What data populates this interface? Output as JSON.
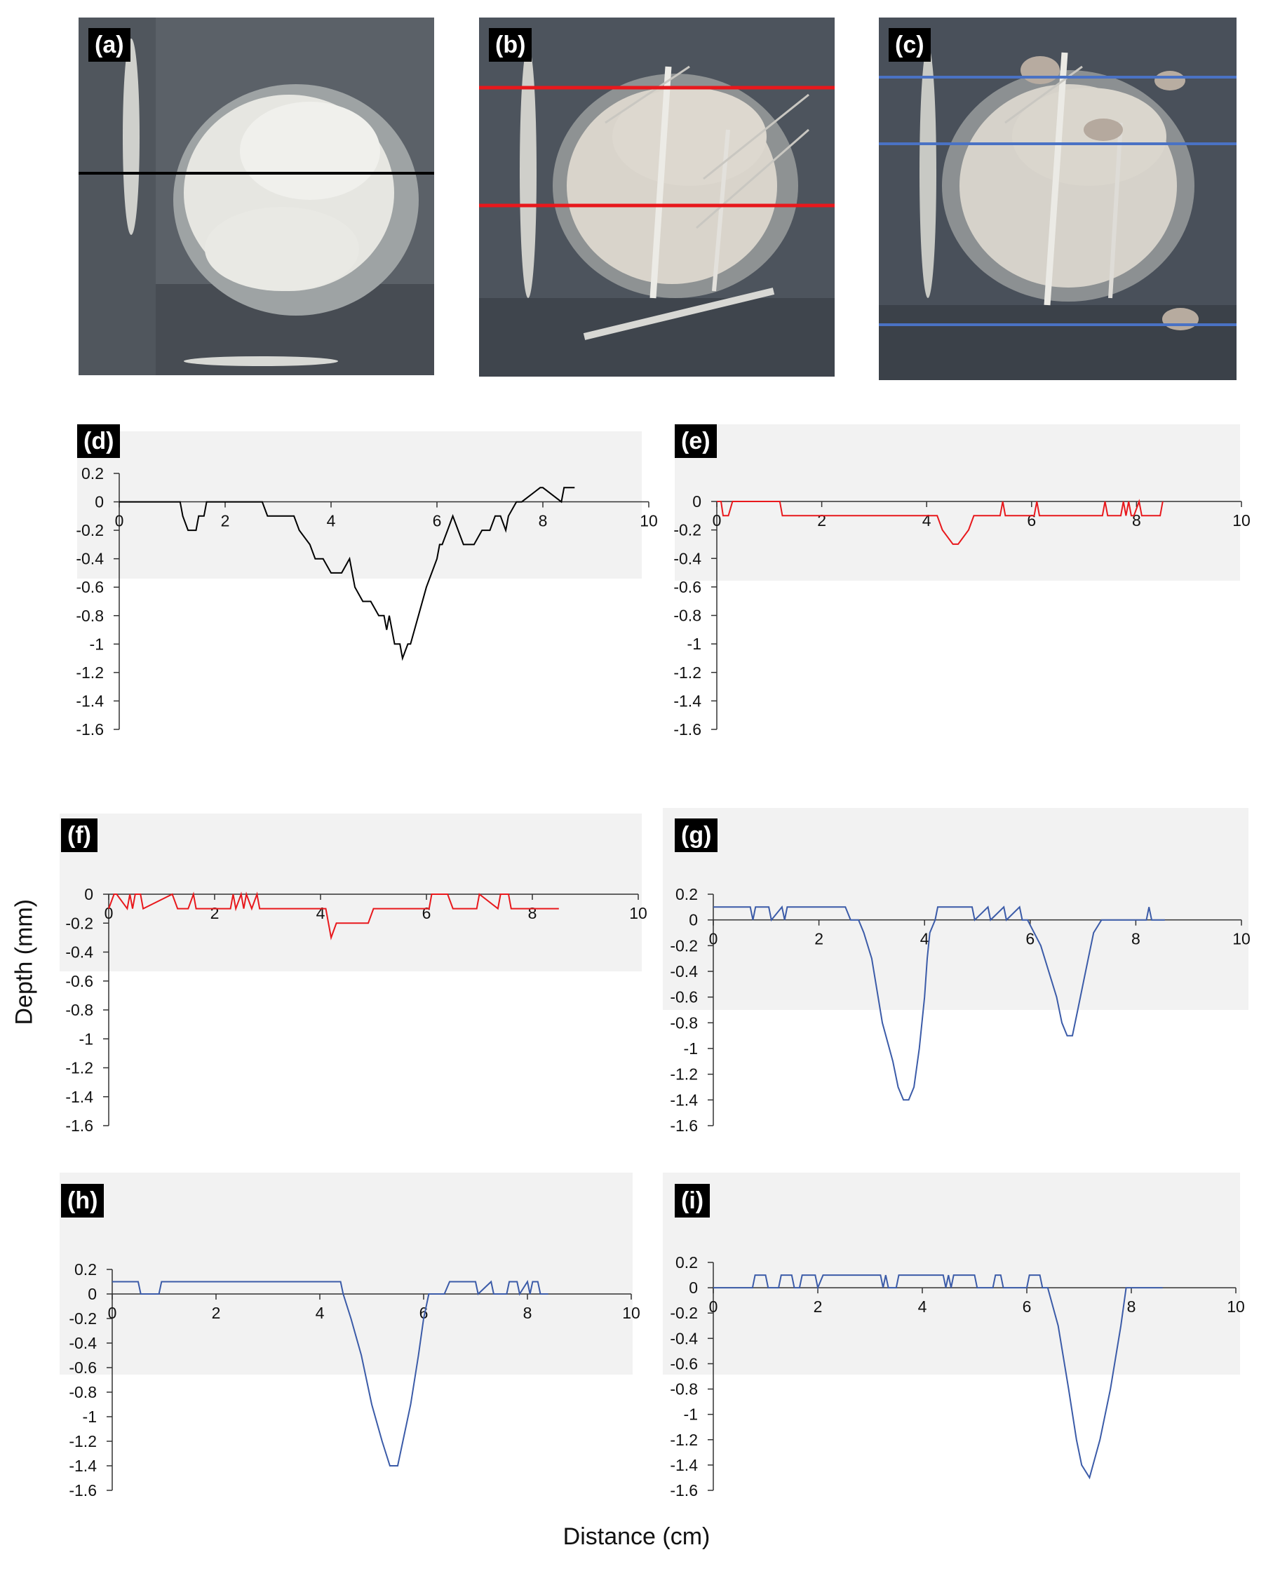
{
  "axis_titles": {
    "y": "Depth (mm)",
    "x": "Distance (cm)"
  },
  "photos": [
    {
      "label": "(a)",
      "line_color": "#000000"
    },
    {
      "label": "(b)",
      "line_color": "#e8181c"
    },
    {
      "label": "(c)",
      "line_color": "#4a72c4"
    }
  ],
  "colors": {
    "black": "#000000",
    "red": "#e8181c",
    "blue": "#3b5ba8",
    "shade": "#f2f2f2"
  },
  "chart_data": [
    {
      "type": "line",
      "label": "(d)",
      "color": "#000000",
      "xlim": [
        0,
        10
      ],
      "ylim": [
        -1.6,
        0.2
      ],
      "xticks": [
        0,
        2,
        4,
        6,
        8,
        10
      ],
      "yticks": [
        0.2,
        0,
        -0.2,
        -0.4,
        -0.6,
        -0.8,
        -1,
        -1.2,
        -1.4,
        -1.6
      ],
      "x": [
        0,
        1.15,
        1.2,
        1.3,
        1.45,
        1.5,
        1.6,
        1.65,
        2.7,
        2.8,
        3.3,
        3.4,
        3.6,
        3.7,
        3.85,
        4.0,
        4.2,
        4.35,
        4.4,
        4.45,
        4.6,
        4.75,
        4.9,
        5.0,
        5.05,
        5.1,
        5.2,
        5.3,
        5.35,
        5.45,
        5.5,
        5.65,
        5.8,
        5.9,
        6.0,
        6.05,
        6.1,
        6.2,
        6.3,
        6.4,
        6.5,
        6.6,
        6.7,
        6.85,
        7.0,
        7.1,
        7.2,
        7.3,
        7.35,
        7.5,
        7.55,
        7.6,
        7.95,
        8.0,
        8.35,
        8.4,
        8.6
      ],
      "y": [
        0,
        0,
        -0.1,
        -0.2,
        -0.2,
        -0.1,
        -0.1,
        0,
        0,
        -0.1,
        -0.1,
        -0.2,
        -0.3,
        -0.4,
        -0.4,
        -0.5,
        -0.5,
        -0.4,
        -0.5,
        -0.6,
        -0.7,
        -0.7,
        -0.8,
        -0.8,
        -0.9,
        -0.8,
        -1.0,
        -1.0,
        -1.1,
        -1.0,
        -1.0,
        -0.8,
        -0.6,
        -0.5,
        -0.4,
        -0.3,
        -0.3,
        -0.2,
        -0.1,
        -0.2,
        -0.3,
        -0.3,
        -0.3,
        -0.2,
        -0.2,
        -0.1,
        -0.1,
        -0.2,
        -0.1,
        0,
        0,
        0,
        0.1,
        0.1,
        0,
        0.1,
        0.1
      ],
      "shade_band": [
        -0.5,
        0.25
      ]
    },
    {
      "type": "line",
      "label": "(e)",
      "color": "#e8181c",
      "xlim": [
        0,
        10
      ],
      "ylim": [
        -1.6,
        0
      ],
      "xticks": [
        0,
        2,
        4,
        6,
        8,
        10
      ],
      "yticks": [
        0,
        -0.2,
        -0.4,
        -0.6,
        -0.8,
        -1,
        -1.2,
        -1.4,
        -1.6
      ],
      "x": [
        0,
        0.08,
        0.12,
        0.22,
        0.3,
        0.4,
        1.2,
        1.25,
        4.2,
        4.3,
        4.5,
        4.6,
        4.8,
        4.9,
        5.4,
        5.45,
        5.5,
        6.05,
        6.1,
        6.15,
        7.35,
        7.4,
        7.45,
        7.7,
        7.75,
        7.8,
        7.85,
        7.9,
        7.95,
        8.05,
        8.1,
        8.4,
        8.45,
        8.5
      ],
      "y": [
        0,
        0,
        -0.1,
        -0.1,
        0,
        0,
        0,
        -0.1,
        -0.1,
        -0.2,
        -0.3,
        -0.3,
        -0.2,
        -0.1,
        -0.1,
        0,
        -0.1,
        -0.1,
        0,
        -0.1,
        -0.1,
        0,
        -0.1,
        -0.1,
        0,
        -0.1,
        0,
        -0.1,
        -0.1,
        0,
        -0.1,
        -0.1,
        -0.1,
        0
      ],
      "shade_band": [
        -0.55,
        0.55
      ]
    },
    {
      "type": "line",
      "label": "(f)",
      "color": "#e8181c",
      "xlim": [
        0,
        10
      ],
      "ylim": [
        -1.6,
        0
      ],
      "xticks": [
        0,
        2,
        4,
        6,
        8,
        10
      ],
      "yticks": [
        0,
        -0.2,
        -0.4,
        -0.6,
        -0.8,
        -1,
        -1.2,
        -1.4,
        -1.6
      ],
      "x": [
        0,
        0.1,
        0.15,
        0.35,
        0.4,
        0.45,
        0.5,
        0.6,
        0.65,
        1.2,
        1.3,
        1.5,
        1.6,
        1.65,
        2.3,
        2.35,
        2.4,
        2.5,
        2.55,
        2.6,
        2.7,
        2.8,
        2.85,
        4.1,
        4.2,
        4.3,
        4.9,
        5.0,
        6.05,
        6.1,
        6.4,
        6.5,
        6.95,
        7.0,
        7.35,
        7.4,
        7.55,
        7.6,
        8.5
      ],
      "y": [
        -0.1,
        0,
        0,
        -0.1,
        0,
        -0.1,
        0,
        0,
        -0.1,
        0,
        -0.1,
        -0.1,
        0,
        -0.1,
        -0.1,
        0,
        -0.1,
        0,
        -0.1,
        0,
        -0.1,
        0,
        -0.1,
        -0.1,
        -0.3,
        -0.2,
        -0.2,
        -0.1,
        -0.1,
        0,
        0,
        -0.1,
        -0.1,
        0,
        -0.1,
        0,
        0,
        -0.1,
        -0.1
      ],
      "shade_band": [
        -0.52,
        0.6
      ]
    },
    {
      "type": "line",
      "label": "(g)",
      "color": "#3b5ba8",
      "xlim": [
        0,
        10
      ],
      "ylim": [
        -1.6,
        0.2
      ],
      "xticks": [
        0,
        2,
        4,
        6,
        8,
        10
      ],
      "yticks": [
        0.2,
        0,
        -0.2,
        -0.4,
        -0.6,
        -0.8,
        -1,
        -1.2,
        -1.4,
        -1.6
      ],
      "x": [
        0,
        0.7,
        0.75,
        0.8,
        1.05,
        1.1,
        1.3,
        1.35,
        1.4,
        2.5,
        2.6,
        2.75,
        2.85,
        3.0,
        3.2,
        3.4,
        3.5,
        3.6,
        3.7,
        3.8,
        3.9,
        4.0,
        4.05,
        4.1,
        4.2,
        4.25,
        4.35,
        4.9,
        4.95,
        5.2,
        5.25,
        5.5,
        5.55,
        5.8,
        5.85,
        5.95,
        6.2,
        6.35,
        6.5,
        6.6,
        6.7,
        6.8,
        6.9,
        7.0,
        7.1,
        7.2,
        7.35,
        8.2,
        8.25,
        8.3,
        8.55
      ],
      "y": [
        0.1,
        0.1,
        0,
        0.1,
        0.1,
        0,
        0.1,
        0,
        0.1,
        0.1,
        0,
        0,
        -0.1,
        -0.3,
        -0.8,
        -1.1,
        -1.3,
        -1.4,
        -1.4,
        -1.3,
        -1.0,
        -0.6,
        -0.3,
        -0.1,
        0,
        0.1,
        0.1,
        0.1,
        0,
        0.1,
        0,
        0.1,
        0,
        0.1,
        0,
        0,
        -0.2,
        -0.4,
        -0.6,
        -0.8,
        -0.9,
        -0.9,
        -0.7,
        -0.5,
        -0.3,
        -0.1,
        0,
        0,
        0.1,
        0,
        0
      ],
      "shade_band": [
        -0.7,
        0.88
      ]
    },
    {
      "type": "line",
      "label": "(h)",
      "color": "#3b5ba8",
      "xlim": [
        0,
        10
      ],
      "ylim": [
        -1.6,
        0.2
      ],
      "xticks": [
        0,
        2,
        4,
        6,
        8,
        10
      ],
      "yticks": [
        0.2,
        0,
        -0.2,
        -0.4,
        -0.6,
        -0.8,
        -1,
        -1.2,
        -1.4,
        -1.6
      ],
      "x": [
        0,
        0.5,
        0.55,
        0.9,
        0.95,
        4.4,
        4.45,
        4.6,
        4.8,
        5.0,
        5.2,
        5.35,
        5.5,
        5.6,
        5.75,
        5.9,
        6.0,
        6.1,
        6.2,
        6.4,
        6.5,
        7.0,
        7.05,
        7.3,
        7.35,
        7.6,
        7.65,
        7.8,
        7.85,
        8.0,
        8.05,
        8.1,
        8.2,
        8.25,
        8.4
      ],
      "y": [
        0.1,
        0.1,
        0,
        0,
        0.1,
        0.1,
        0,
        -0.2,
        -0.5,
        -0.9,
        -1.2,
        -1.4,
        -1.4,
        -1.2,
        -0.9,
        -0.5,
        -0.2,
        0,
        0,
        0,
        0.1,
        0.1,
        0,
        0.1,
        0,
        0,
        0.1,
        0.1,
        0,
        0.1,
        0,
        0.1,
        0.1,
        0,
        0
      ],
      "shade_band": [
        -0.65,
        0.2
      ]
    },
    {
      "type": "line",
      "label": "(i)",
      "color": "#3b5ba8",
      "xlim": [
        0,
        10
      ],
      "ylim": [
        -1.6,
        0.2
      ],
      "xticks": [
        0,
        2,
        4,
        6,
        8,
        10
      ],
      "yticks": [
        0.2,
        0,
        -0.2,
        -0.4,
        -0.6,
        -0.8,
        -1,
        -1.2,
        -1.4,
        -1.6
      ],
      "x": [
        0,
        0.75,
        0.8,
        1.0,
        1.05,
        1.25,
        1.3,
        1.5,
        1.55,
        1.65,
        1.7,
        1.95,
        2.0,
        2.1,
        2.15,
        2.35,
        2.4,
        3.2,
        3.25,
        3.3,
        3.35,
        3.5,
        3.55,
        4.4,
        4.45,
        4.5,
        4.55,
        4.6,
        4.65,
        5.0,
        5.05,
        5.35,
        5.4,
        5.5,
        5.55,
        6.0,
        6.05,
        6.25,
        6.3,
        6.4,
        6.6,
        6.8,
        6.95,
        7.05,
        7.2,
        7.4,
        7.6,
        7.8,
        7.9,
        8.6
      ],
      "y": [
        0,
        0,
        0.1,
        0.1,
        0,
        0,
        0.1,
        0.1,
        0,
        0,
        0.1,
        0.1,
        0,
        0.1,
        0.1,
        0.1,
        0.1,
        0.1,
        0,
        0.1,
        0,
        0,
        0.1,
        0.1,
        0,
        0.1,
        0,
        0.1,
        0.1,
        0.1,
        0,
        0,
        0.1,
        0.1,
        0,
        0,
        0.1,
        0.1,
        0,
        0,
        -0.3,
        -0.8,
        -1.2,
        -1.4,
        -1.5,
        -1.2,
        -0.8,
        -0.3,
        0,
        0
      ],
      "shade_band": [
        -0.68,
        0.22
      ]
    }
  ]
}
